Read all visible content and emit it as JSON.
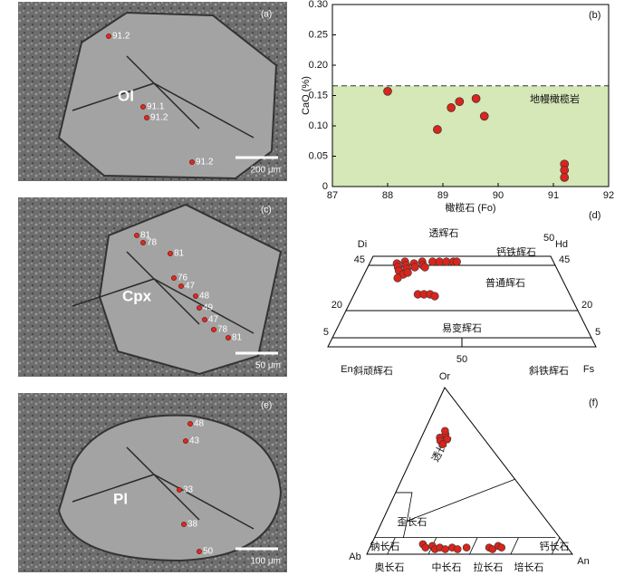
{
  "chart_data": [
    {
      "type": "scatter",
      "panel_label": "(b)",
      "x_label": "橄榄石 (Fo)",
      "y_label": "CaO (%)",
      "region_label": "地幔橄榄岩",
      "x": [
        88.0,
        88.9,
        89.15,
        89.3,
        89.6,
        89.75,
        91.2,
        91.2,
        91.2
      ],
      "values": [
        0.157,
        0.094,
        0.13,
        0.14,
        0.145,
        0.116,
        0.037,
        0.027,
        0.015
      ],
      "threshold": 0.166,
      "color": "#d9251c",
      "region_color": "#d6e7b8",
      "xlim": [
        87,
        92
      ],
      "ylim": [
        0,
        0.3
      ],
      "xticks": [
        87,
        88,
        89,
        90,
        91,
        92
      ],
      "yticks": [
        0,
        0.05,
        {
          "value": 0.1,
          "label": "0.10"
        },
        0.15,
        {
          "value": 0.2,
          "label": "0.20"
        },
        0.25,
        {
          "value": 0.3,
          "label": "0.30"
        }
      ]
    },
    {
      "type": "pyroxene",
      "panel_label": "(d)",
      "corners": [
        "Di",
        "Hd",
        "En",
        "Fs"
      ],
      "fields": [
        "透辉石",
        "钙铁辉石",
        "普通辉石",
        "易变辉石",
        "斜顽辉石",
        "斜铁辉石"
      ],
      "x": [
        8,
        9,
        10,
        11,
        12,
        10,
        13,
        14,
        12,
        15,
        16,
        18,
        20,
        22,
        24,
        25,
        17,
        11,
        13,
        21,
        23,
        25,
        27
      ],
      "values": [
        46,
        44,
        47,
        45,
        43,
        42,
        46,
        44,
        40,
        47,
        45,
        47,
        47,
        47,
        47,
        47,
        44,
        38,
        41,
        29,
        29,
        29,
        28
      ],
      "color": "#d9251c",
      "yticks": [
        50,
        45,
        20,
        5
      ],
      "xticks": [
        50
      ]
    },
    {
      "type": "feldspar",
      "panel_label": "(f)",
      "corners": [
        "Or",
        "Ab",
        "An"
      ],
      "fields": [
        "透长石",
        "歪长石",
        "钠长石",
        "奥长石",
        "中长石",
        "拉长石",
        "培长石",
        "钙长石"
      ],
      "x": [
        9,
        10,
        11,
        12,
        10,
        13,
        25,
        27,
        30,
        32,
        34,
        37,
        40,
        43,
        47,
        58,
        60,
        62,
        64
      ],
      "values": [
        70,
        68,
        72,
        66,
        74,
        69,
        6,
        4,
        5,
        3,
        4,
        3,
        4,
        3,
        4,
        4,
        3,
        5,
        4
      ],
      "color": "#d9251c"
    }
  ],
  "images": [
    {
      "panel_label": "(a)",
      "mineral": "Ol",
      "scale_bar": "200 μm",
      "spots": [
        "91.2",
        "91.1",
        "91.2",
        "91.2"
      ]
    },
    {
      "panel_label": "(c)",
      "mineral": "Cpx",
      "scale_bar": "50 μm",
      "spots": [
        "81",
        "78",
        "81",
        "76",
        "47",
        "48",
        "49",
        "47",
        "78",
        "81"
      ]
    },
    {
      "panel_label": "(e)",
      "mineral": "Pl",
      "scale_bar": "100 μm",
      "spots": [
        "48",
        "43",
        "33",
        "38",
        "50"
      ]
    }
  ]
}
